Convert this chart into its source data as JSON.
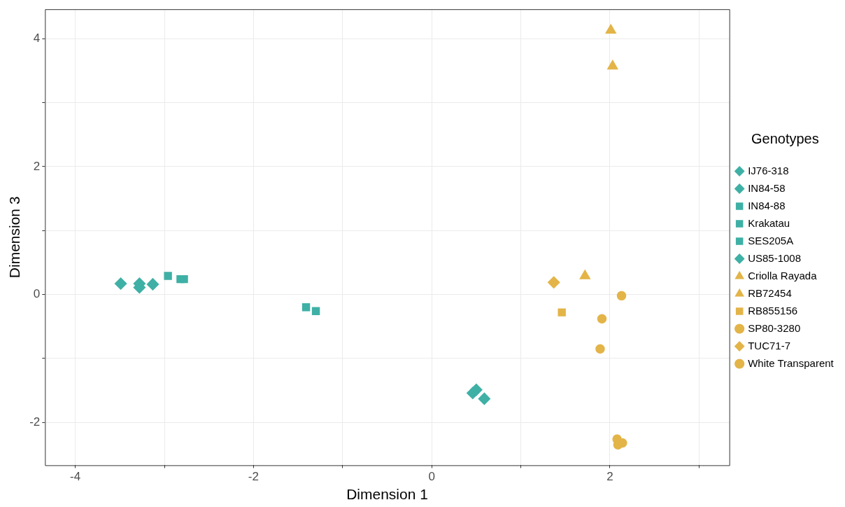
{
  "chart_data": {
    "type": "scatter",
    "xlabel": "Dimension 1",
    "ylabel": "Dimension 3",
    "legend_title": "Genotypes",
    "legend": "right",
    "grid": true,
    "xlim": [
      -4.34,
      3.34
    ],
    "xticks": [
      -4,
      {
        "value": -3,
        "label": null
      },
      -2,
      {
        "value": -1,
        "label": null
      },
      0,
      {
        "value": 1,
        "label": null
      },
      2,
      {
        "value": 3,
        "label": null
      }
    ],
    "ylim": [
      -2.67,
      4.46
    ],
    "yticks": [
      -2,
      {
        "value": -1,
        "label": null
      },
      0,
      {
        "value": 1,
        "label": null
      },
      2,
      {
        "value": 3,
        "label": null
      },
      4
    ],
    "series": [
      {
        "name": "IJ76-318",
        "color": "#3fb0a5",
        "marker": "diamond",
        "x": [
          -3.13
        ],
        "values": [
          0.16
        ]
      },
      {
        "name": "IN84-58",
        "color": "#3fb0a5",
        "marker": "diamond",
        "x": [
          -3.49,
          -3.28,
          -3.28
        ],
        "values": [
          0.17,
          0.17,
          0.11
        ]
      },
      {
        "name": "IN84-88",
        "color": "#3fb0a5",
        "marker": "square",
        "x": [
          -1.41
        ],
        "values": [
          -0.2
        ]
      },
      {
        "name": "Krakatau",
        "color": "#3fb0a5",
        "marker": "square",
        "x": [
          -1.3
        ],
        "values": [
          -0.26
        ]
      },
      {
        "name": "SES205A",
        "color": "#3fb0a5",
        "marker": "square",
        "x": [
          -2.96,
          -2.82,
          -2.78
        ],
        "values": [
          0.29,
          0.24,
          0.24
        ]
      },
      {
        "name": "US85-1008",
        "color": "#3fb0a5",
        "marker": "diamond",
        "x": [
          0.46,
          0.5,
          0.59
        ],
        "values": [
          -1.54,
          -1.49,
          -1.63
        ]
      },
      {
        "name": "Criolla Rayada",
        "color": "#e3b448",
        "marker": "triangle",
        "x": [
          1.72
        ],
        "values": [
          0.29
        ]
      },
      {
        "name": "RB72454",
        "color": "#e3b448",
        "marker": "triangle",
        "x": [
          2.01,
          2.03
        ],
        "values": [
          4.13,
          3.57
        ]
      },
      {
        "name": "RB855156",
        "color": "#e3b448",
        "marker": "square",
        "x": [
          1.46
        ],
        "values": [
          -0.28
        ]
      },
      {
        "name": "SP80-3280",
        "color": "#e3b448",
        "marker": "circle",
        "x": [
          2.08,
          2.09,
          2.14
        ],
        "values": [
          -2.26,
          -2.35,
          -2.32
        ]
      },
      {
        "name": "TUC71-7",
        "color": "#e3b448",
        "marker": "diamond",
        "x": [
          1.37
        ],
        "values": [
          0.19
        ]
      },
      {
        "name": "White Transparent",
        "color": "#e3b448",
        "marker": "circle",
        "x": [
          2.13,
          1.91,
          1.89
        ],
        "values": [
          -0.02,
          -0.38,
          -0.85
        ]
      }
    ]
  }
}
